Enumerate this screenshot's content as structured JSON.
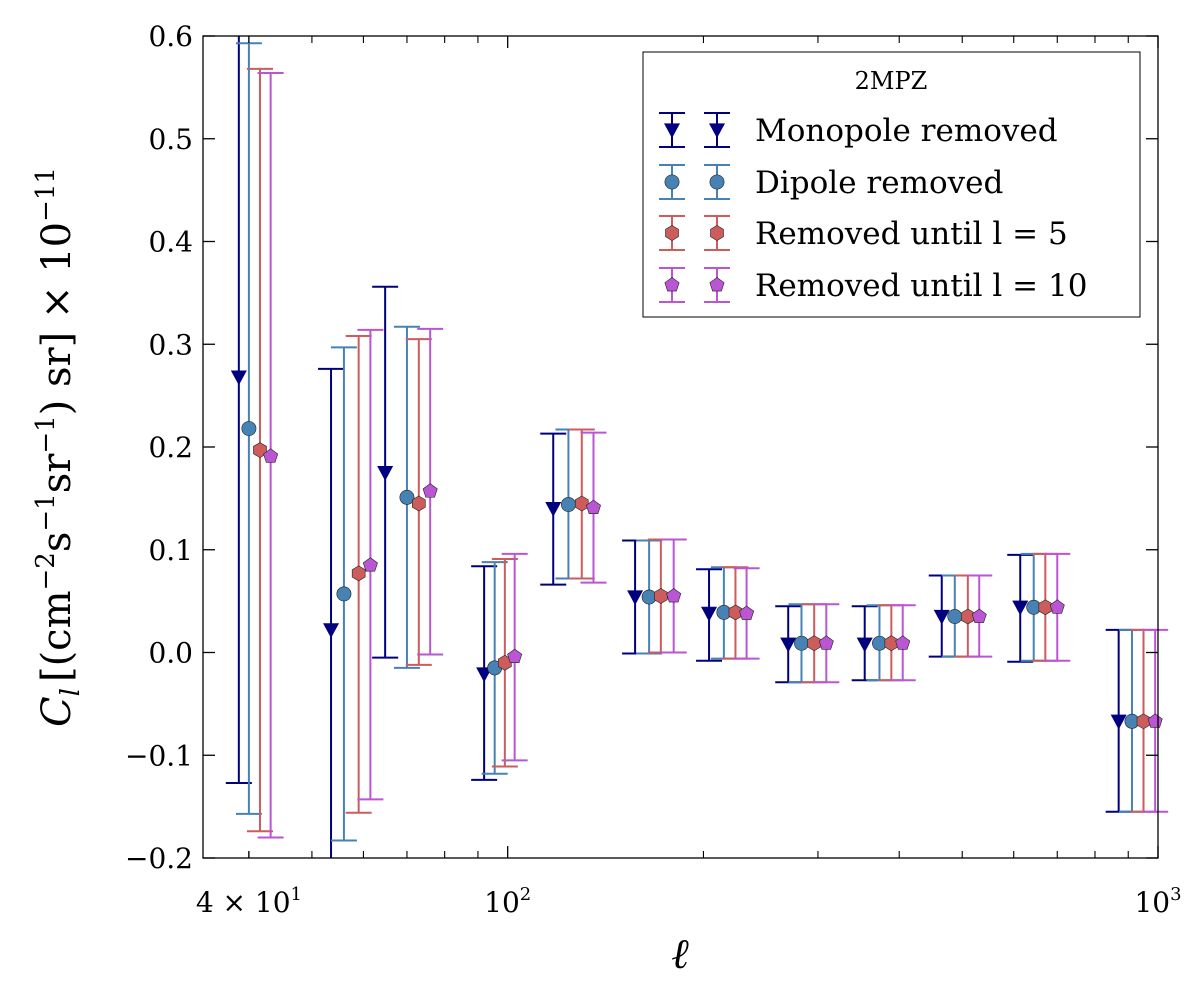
{
  "chart_data": {
    "type": "scatter",
    "x_scale": "log",
    "xlim": [
      34,
      1000
    ],
    "ylim": [
      -0.2,
      0.6
    ],
    "xlabel": "ℓ",
    "ylabel_main": "C",
    "ylabel_sub": "l",
    "ylabel_units_pre": "[(cm",
    "ylabel_exp1": "−2",
    "ylabel_units_mid1": "s",
    "ylabel_exp2": "−1",
    "ylabel_units_mid2": "sr",
    "ylabel_exp3": "−1",
    "ylabel_units_post": ") sr] × 10",
    "ylabel_exp4": "−11",
    "y_ticks": [
      {
        "value": -0.2,
        "label": "−0.2"
      },
      {
        "value": -0.1,
        "label": "−0.1"
      },
      {
        "value": 0.0,
        "label": "0.0"
      },
      {
        "value": 0.1,
        "label": "0.1"
      },
      {
        "value": 0.2,
        "label": "0.2"
      },
      {
        "value": 0.3,
        "label": "0.3"
      },
      {
        "value": 0.4,
        "label": "0.4"
      },
      {
        "value": 0.5,
        "label": "0.5"
      },
      {
        "value": 0.6,
        "label": "0.6"
      }
    ],
    "x_ticks": [
      {
        "value": 40,
        "base": "4 × 10",
        "exp": "1"
      },
      {
        "value": 100,
        "base": "10",
        "exp": "2"
      },
      {
        "value": 1000,
        "base": "10",
        "exp": "3"
      }
    ],
    "legend": {
      "title": "2MPZ",
      "location": "upper right"
    },
    "series": [
      {
        "name": "Monopole removed",
        "marker": "triangle-down",
        "color": "#00007f",
        "x": [
          38.6,
          53.5,
          64.8,
          92.0,
          117.5,
          157.0,
          204.0,
          270.0,
          354.0,
          465.0,
          614.0,
          870.0
        ],
        "y": [
          0.268,
          0.022,
          0.175,
          -0.021,
          0.14,
          0.054,
          0.038,
          0.008,
          0.008,
          0.035,
          0.044,
          -0.067
        ],
        "err_low": [
          0.395,
          0.236,
          0.18,
          0.103,
          0.074,
          0.055,
          0.046,
          0.037,
          0.035,
          0.039,
          0.053,
          0.088
        ],
        "err_high": [
          0.382,
          0.254,
          0.181,
          0.105,
          0.073,
          0.055,
          0.043,
          0.037,
          0.037,
          0.04,
          0.051,
          0.089
        ]
      },
      {
        "name": "Dipole removed",
        "marker": "circle",
        "color": "#4682b4",
        "x": [
          40.0,
          56.0,
          70.0,
          95.5,
          124.0,
          165.0,
          215.0,
          283.0,
          373.0,
          487.0,
          644.0,
          912.0
        ],
        "y": [
          0.218,
          0.057,
          0.151,
          -0.015,
          0.144,
          0.054,
          0.039,
          0.009,
          0.009,
          0.035,
          0.044,
          -0.067
        ],
        "err_low": [
          0.375,
          0.24,
          0.166,
          0.103,
          0.072,
          0.055,
          0.045,
          0.038,
          0.036,
          0.039,
          0.052,
          0.088
        ],
        "err_high": [
          0.375,
          0.24,
          0.166,
          0.103,
          0.073,
          0.055,
          0.044,
          0.038,
          0.037,
          0.04,
          0.052,
          0.089
        ]
      },
      {
        "name": "Removed until l = 5",
        "marker": "hexagon",
        "color": "#cd5c5c",
        "x": [
          41.6,
          59.0,
          73.0,
          99.0,
          130.0,
          172.0,
          224.0,
          296.0,
          389.0,
          510.0,
          671.0,
          950.0
        ],
        "y": [
          0.197,
          0.077,
          0.145,
          -0.01,
          0.145,
          0.055,
          0.039,
          0.009,
          0.009,
          0.035,
          0.044,
          -0.067
        ],
        "err_low": [
          0.371,
          0.233,
          0.157,
          0.101,
          0.073,
          0.055,
          0.045,
          0.038,
          0.036,
          0.039,
          0.052,
          0.088
        ],
        "err_high": [
          0.371,
          0.231,
          0.16,
          0.101,
          0.072,
          0.055,
          0.044,
          0.038,
          0.037,
          0.04,
          0.052,
          0.089
        ]
      },
      {
        "name": "Removed until l = 10",
        "marker": "pentagon",
        "color": "#ba55d3",
        "x": [
          43.2,
          61.5,
          76.0,
          102.5,
          135.5,
          180.0,
          233.0,
          309.0,
          405.0,
          531.0,
          700.0,
          990.0
        ],
        "y": [
          0.191,
          0.085,
          0.157,
          -0.004,
          0.141,
          0.055,
          0.038,
          0.009,
          0.009,
          0.035,
          0.044,
          -0.067
        ],
        "err_low": [
          0.371,
          0.228,
          0.159,
          0.101,
          0.073,
          0.055,
          0.044,
          0.038,
          0.036,
          0.039,
          0.052,
          0.088
        ],
        "err_high": [
          0.373,
          0.229,
          0.158,
          0.1,
          0.073,
          0.055,
          0.044,
          0.038,
          0.037,
          0.04,
          0.052,
          0.089
        ]
      }
    ]
  }
}
